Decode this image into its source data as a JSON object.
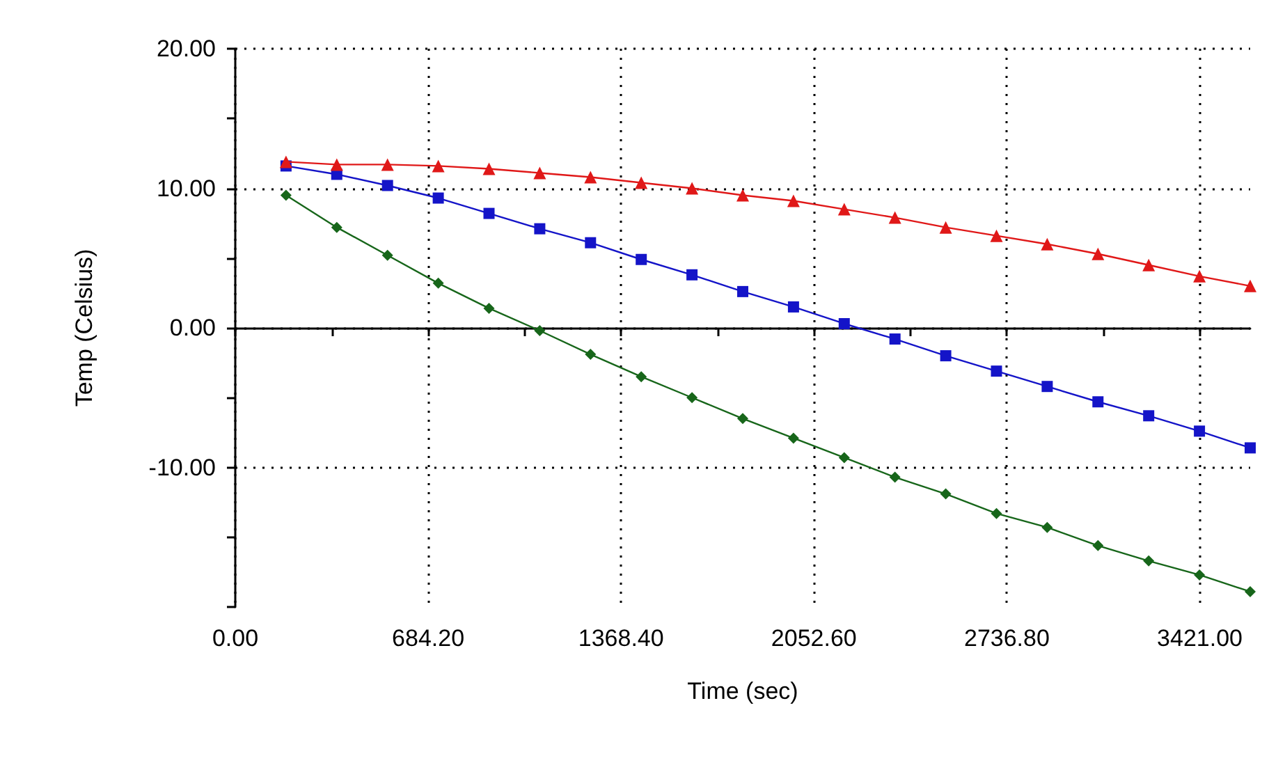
{
  "chart_data": {
    "type": "line",
    "xlabel": "Time (sec)",
    "ylabel": "Temp (Celsius)",
    "x": [
      180,
      360,
      540,
      720,
      900,
      1080,
      1260,
      1440,
      1620,
      1800,
      1980,
      2160,
      2340,
      2520,
      2700,
      2880,
      3060,
      3240,
      3420,
      3600
    ],
    "series": [
      {
        "color": "#e01818",
        "marker": "triangle",
        "values": [
          11.9,
          11.7,
          11.7,
          11.6,
          11.4,
          11.1,
          10.8,
          10.4,
          10.0,
          9.5,
          9.1,
          8.5,
          7.9,
          7.2,
          6.6,
          6.0,
          5.3,
          4.5,
          3.7,
          3.0
        ]
      },
      {
        "color": "#1414c8",
        "marker": "square",
        "values": [
          11.6,
          11.0,
          10.2,
          9.3,
          8.2,
          7.1,
          6.1,
          4.9,
          3.8,
          2.6,
          1.5,
          0.3,
          -0.8,
          -2.0,
          -3.1,
          -4.2,
          -5.3,
          -6.3,
          -7.4,
          -8.6
        ]
      },
      {
        "color": "#17661a",
        "marker": "diamond",
        "values": [
          9.5,
          7.2,
          5.2,
          3.2,
          1.4,
          -0.2,
          -1.9,
          -3.5,
          -5.0,
          -6.5,
          -7.9,
          -9.3,
          -10.7,
          -11.9,
          -13.3,
          -14.3,
          -15.6,
          -16.7,
          -17.7,
          -18.9
        ]
      }
    ],
    "xlim": [
      0,
      3600
    ],
    "xticks": [
      {
        "value": 0,
        "label": "0.00"
      },
      {
        "value": 342.1,
        "label": null
      },
      {
        "value": 684.2,
        "label": "684.20"
      },
      {
        "value": 1026.3,
        "label": null
      },
      {
        "value": 1368.4,
        "label": "1368.40"
      },
      {
        "value": 1710.5,
        "label": null
      },
      {
        "value": 2052.6,
        "label": "2052.60"
      },
      {
        "value": 2394.7,
        "label": null
      },
      {
        "value": 2736.8,
        "label": "2736.80"
      },
      {
        "value": 3078.9,
        "label": null
      },
      {
        "value": 3421,
        "label": "3421.00"
      }
    ],
    "ylim": [
      -20,
      20
    ],
    "yticks": [
      {
        "value": -20,
        "label": null
      },
      {
        "value": -15,
        "label": null
      },
      {
        "value": -10,
        "label": "-10.00"
      },
      {
        "value": -5,
        "label": null
      },
      {
        "value": 0,
        "label": "0.00"
      },
      {
        "value": 5,
        "label": null
      },
      {
        "value": 10,
        "label": "10.00"
      },
      {
        "value": 15,
        "label": null
      },
      {
        "value": 20,
        "label": "20.00"
      }
    ],
    "grid": true,
    "line_style": "solid"
  }
}
